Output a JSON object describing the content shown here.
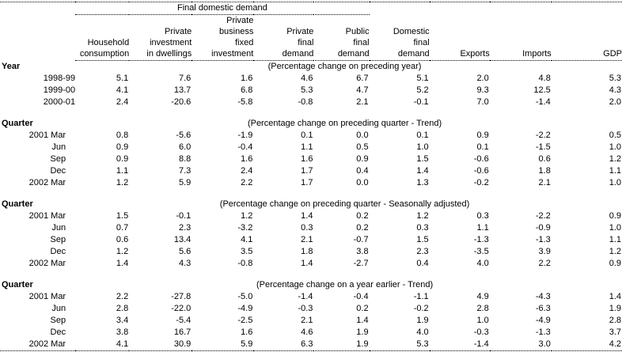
{
  "colors": {
    "text": "#000000",
    "background": "#ffffff",
    "rule": "#000000"
  },
  "table": {
    "span_header": "Final domestic demand",
    "columns": [
      "Household\nconsumption",
      "Private\ninvestment\nin dwellings",
      "Private\nbusiness\nfixed\ninvestment",
      "Private\nfinal\ndemand",
      "Public\nfinal\ndemand",
      "Domestic\nfinal\ndemand",
      "Exports",
      "Imports",
      "GDP"
    ],
    "sections": [
      {
        "label": "Year",
        "note": "(Percentage change on preceding year)",
        "rows": [
          {
            "label": "1998-99",
            "quarter": false,
            "values": [
              "5.1",
              "7.6",
              "1.6",
              "4.6",
              "6.7",
              "5.1",
              "2.0",
              "4.8",
              "5.3"
            ]
          },
          {
            "label": "1999-00",
            "quarter": false,
            "values": [
              "4.1",
              "13.7",
              "6.8",
              "5.3",
              "4.7",
              "5.2",
              "9.3",
              "12.5",
              "4.3"
            ]
          },
          {
            "label": "2000-01",
            "quarter": false,
            "values": [
              "2.4",
              "-20.6",
              "-5.8",
              "-0.8",
              "2.1",
              "-0.1",
              "7.0",
              "-1.4",
              "2.0"
            ]
          }
        ]
      },
      {
        "label": "Quarter",
        "note": "(Percentage change on preceding quarter - Trend)",
        "rows": [
          {
            "label": "2001 Mar",
            "quarter": true,
            "values": [
              "0.8",
              "-5.6",
              "-1.9",
              "0.1",
              "0.0",
              "0.1",
              "0.9",
              "-2.2",
              "0.5"
            ]
          },
          {
            "label": "Jun",
            "quarter": true,
            "values": [
              "0.9",
              "6.0",
              "-0.4",
              "1.1",
              "0.5",
              "1.0",
              "0.1",
              "-1.5",
              "1.0"
            ]
          },
          {
            "label": "Sep",
            "quarter": true,
            "values": [
              "0.9",
              "8.8",
              "1.6",
              "1.6",
              "0.9",
              "1.5",
              "-0.6",
              "0.6",
              "1.2"
            ]
          },
          {
            "label": "Dec",
            "quarter": true,
            "values": [
              "1.1",
              "7.3",
              "2.4",
              "1.7",
              "0.4",
              "1.4",
              "-0.6",
              "1.8",
              "1.1"
            ]
          },
          {
            "label": "2002 Mar",
            "quarter": true,
            "values": [
              "1.2",
              "5.9",
              "2.2",
              "1.7",
              "0.0",
              "1.3",
              "-0.2",
              "2.1",
              "1.0"
            ]
          }
        ]
      },
      {
        "label": "Quarter",
        "note": "(Percentage change on preceding quarter - Seasonally adjusted)",
        "rows": [
          {
            "label": "2001 Mar",
            "quarter": true,
            "values": [
              "1.5",
              "-0.1",
              "1.2",
              "1.4",
              "0.2",
              "1.2",
              "0.3",
              "-2.2",
              "0.9"
            ]
          },
          {
            "label": "Jun",
            "quarter": true,
            "values": [
              "0.7",
              "2.3",
              "-3.2",
              "0.3",
              "0.2",
              "0.3",
              "1.1",
              "-0.9",
              "1.0"
            ]
          },
          {
            "label": "Sep",
            "quarter": true,
            "values": [
              "0.6",
              "13.4",
              "4.1",
              "2.1",
              "-0.7",
              "1.5",
              "-1.3",
              "-1.3",
              "1.1"
            ]
          },
          {
            "label": "Dec",
            "quarter": true,
            "values": [
              "1.2",
              "5.6",
              "3.5",
              "1.8",
              "3.8",
              "2.3",
              "-3.5",
              "3.9",
              "1.2"
            ]
          },
          {
            "label": "2002 Mar",
            "quarter": true,
            "values": [
              "1.4",
              "4.3",
              "-0.8",
              "1.4",
              "-2.7",
              "0.4",
              "4.0",
              "2.2",
              "0.9"
            ]
          }
        ]
      },
      {
        "label": "Quarter",
        "note": "(Percentage change on a year earlier - Trend)",
        "rows": [
          {
            "label": "2001 Mar",
            "quarter": true,
            "values": [
              "2.2",
              "-27.8",
              "-5.0",
              "-1.4",
              "-0.4",
              "-1.1",
              "4.9",
              "-4.3",
              "1.4"
            ]
          },
          {
            "label": "Jun",
            "quarter": true,
            "values": [
              "2.8",
              "-22.0",
              "-4.9",
              "-0.3",
              "0.2",
              "-0.2",
              "2.8",
              "-6.3",
              "1.9"
            ]
          },
          {
            "label": "Sep",
            "quarter": true,
            "values": [
              "3.4",
              "-5.4",
              "-2.5",
              "2.1",
              "1.4",
              "1.9",
              "1.0",
              "-4.9",
              "2.8"
            ]
          },
          {
            "label": "Dec",
            "quarter": true,
            "values": [
              "3.8",
              "16.7",
              "1.6",
              "4.6",
              "1.9",
              "4.0",
              "-0.3",
              "-1.3",
              "3.7"
            ]
          },
          {
            "label": "2002 Mar",
            "quarter": true,
            "values": [
              "4.1",
              "30.9",
              "5.9",
              "6.3",
              "1.9",
              "5.3",
              "-1.4",
              "3.0",
              "4.2"
            ]
          }
        ]
      }
    ]
  }
}
